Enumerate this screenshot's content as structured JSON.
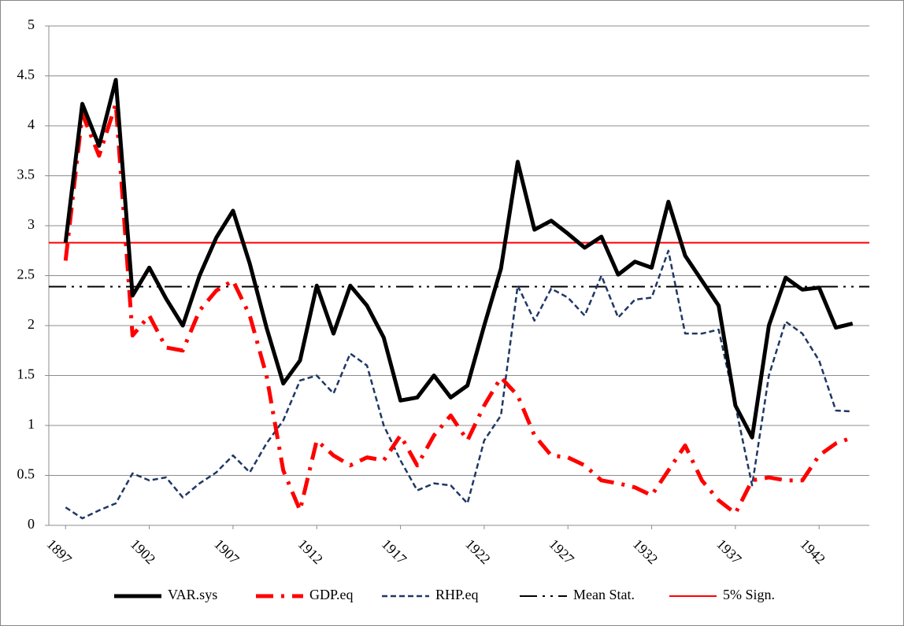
{
  "chart_data": {
    "type": "line",
    "x": [
      1897,
      1898,
      1899,
      1900,
      1901,
      1902,
      1903,
      1904,
      1905,
      1906,
      1907,
      1908,
      1909,
      1910,
      1911,
      1912,
      1913,
      1914,
      1915,
      1916,
      1917,
      1918,
      1919,
      1920,
      1921,
      1922,
      1923,
      1924,
      1925,
      1926,
      1927,
      1928,
      1929,
      1930,
      1931,
      1932,
      1933,
      1934,
      1935,
      1936,
      1937,
      1938,
      1939,
      1940,
      1941,
      1942,
      1943,
      1944
    ],
    "series": [
      {
        "name": "VAR.sys",
        "color": "#000000",
        "style": "solid-thick",
        "values": [
          2.83,
          4.22,
          3.8,
          4.46,
          2.3,
          2.58,
          2.27,
          2.0,
          2.5,
          2.88,
          3.15,
          2.62,
          1.98,
          1.42,
          1.65,
          2.4,
          1.92,
          2.4,
          2.2,
          1.88,
          1.25,
          1.28,
          1.5,
          1.28,
          1.4,
          2.0,
          2.57,
          3.64,
          2.96,
          3.05,
          2.92,
          2.78,
          2.89,
          2.51,
          2.64,
          2.58,
          3.24,
          2.7,
          2.45,
          2.2,
          1.2,
          0.88,
          2.0,
          2.48,
          2.36,
          2.38,
          1.98,
          2.02
        ]
      },
      {
        "name": "GDP.eq",
        "color": "#ff0000",
        "style": "dash-dot-thick",
        "values": [
          2.65,
          4.12,
          3.7,
          4.22,
          1.9,
          2.1,
          1.78,
          1.75,
          2.15,
          2.35,
          2.45,
          2.1,
          1.5,
          0.55,
          0.15,
          0.85,
          0.7,
          0.6,
          0.68,
          0.65,
          0.9,
          0.6,
          0.9,
          1.1,
          0.85,
          1.2,
          1.48,
          1.3,
          0.9,
          0.7,
          0.68,
          0.6,
          0.45,
          0.42,
          0.38,
          0.3,
          0.55,
          0.8,
          0.45,
          0.25,
          0.12,
          0.45,
          0.48,
          0.45,
          0.45,
          0.7,
          0.82,
          0.88
        ]
      },
      {
        "name": "RHP.eq",
        "color": "#1f3864",
        "style": "dash",
        "values": [
          0.18,
          0.07,
          0.15,
          0.22,
          0.52,
          0.45,
          0.48,
          0.28,
          0.42,
          0.53,
          0.7,
          0.53,
          0.82,
          1.05,
          1.45,
          1.5,
          1.32,
          1.72,
          1.6,
          1.0,
          0.65,
          0.35,
          0.42,
          0.4,
          0.22,
          0.85,
          1.1,
          2.4,
          2.05,
          2.37,
          2.28,
          2.1,
          2.5,
          2.08,
          2.26,
          2.28,
          2.75,
          1.92,
          1.92,
          1.96,
          1.2,
          0.4,
          1.5,
          2.04,
          1.92,
          1.65,
          1.15,
          1.14
        ]
      }
    ],
    "reference_lines": [
      {
        "name": "Mean Stat.",
        "value": 2.39,
        "color": "#000000",
        "style": "dash-dot-dot"
      },
      {
        "name": "5% Sign.",
        "value": 2.83,
        "color": "#ff0000",
        "style": "solid"
      }
    ],
    "xlim": [
      1896,
      1945
    ],
    "xticks": [
      1897,
      1902,
      1907,
      1912,
      1917,
      1922,
      1927,
      1932,
      1937,
      1942
    ],
    "ylim": [
      0,
      5
    ],
    "yticks": [
      0,
      0.5,
      1,
      1.5,
      2,
      2.5,
      3,
      3.5,
      4,
      4.5,
      5
    ],
    "grid": true,
    "legend": "bottom"
  }
}
